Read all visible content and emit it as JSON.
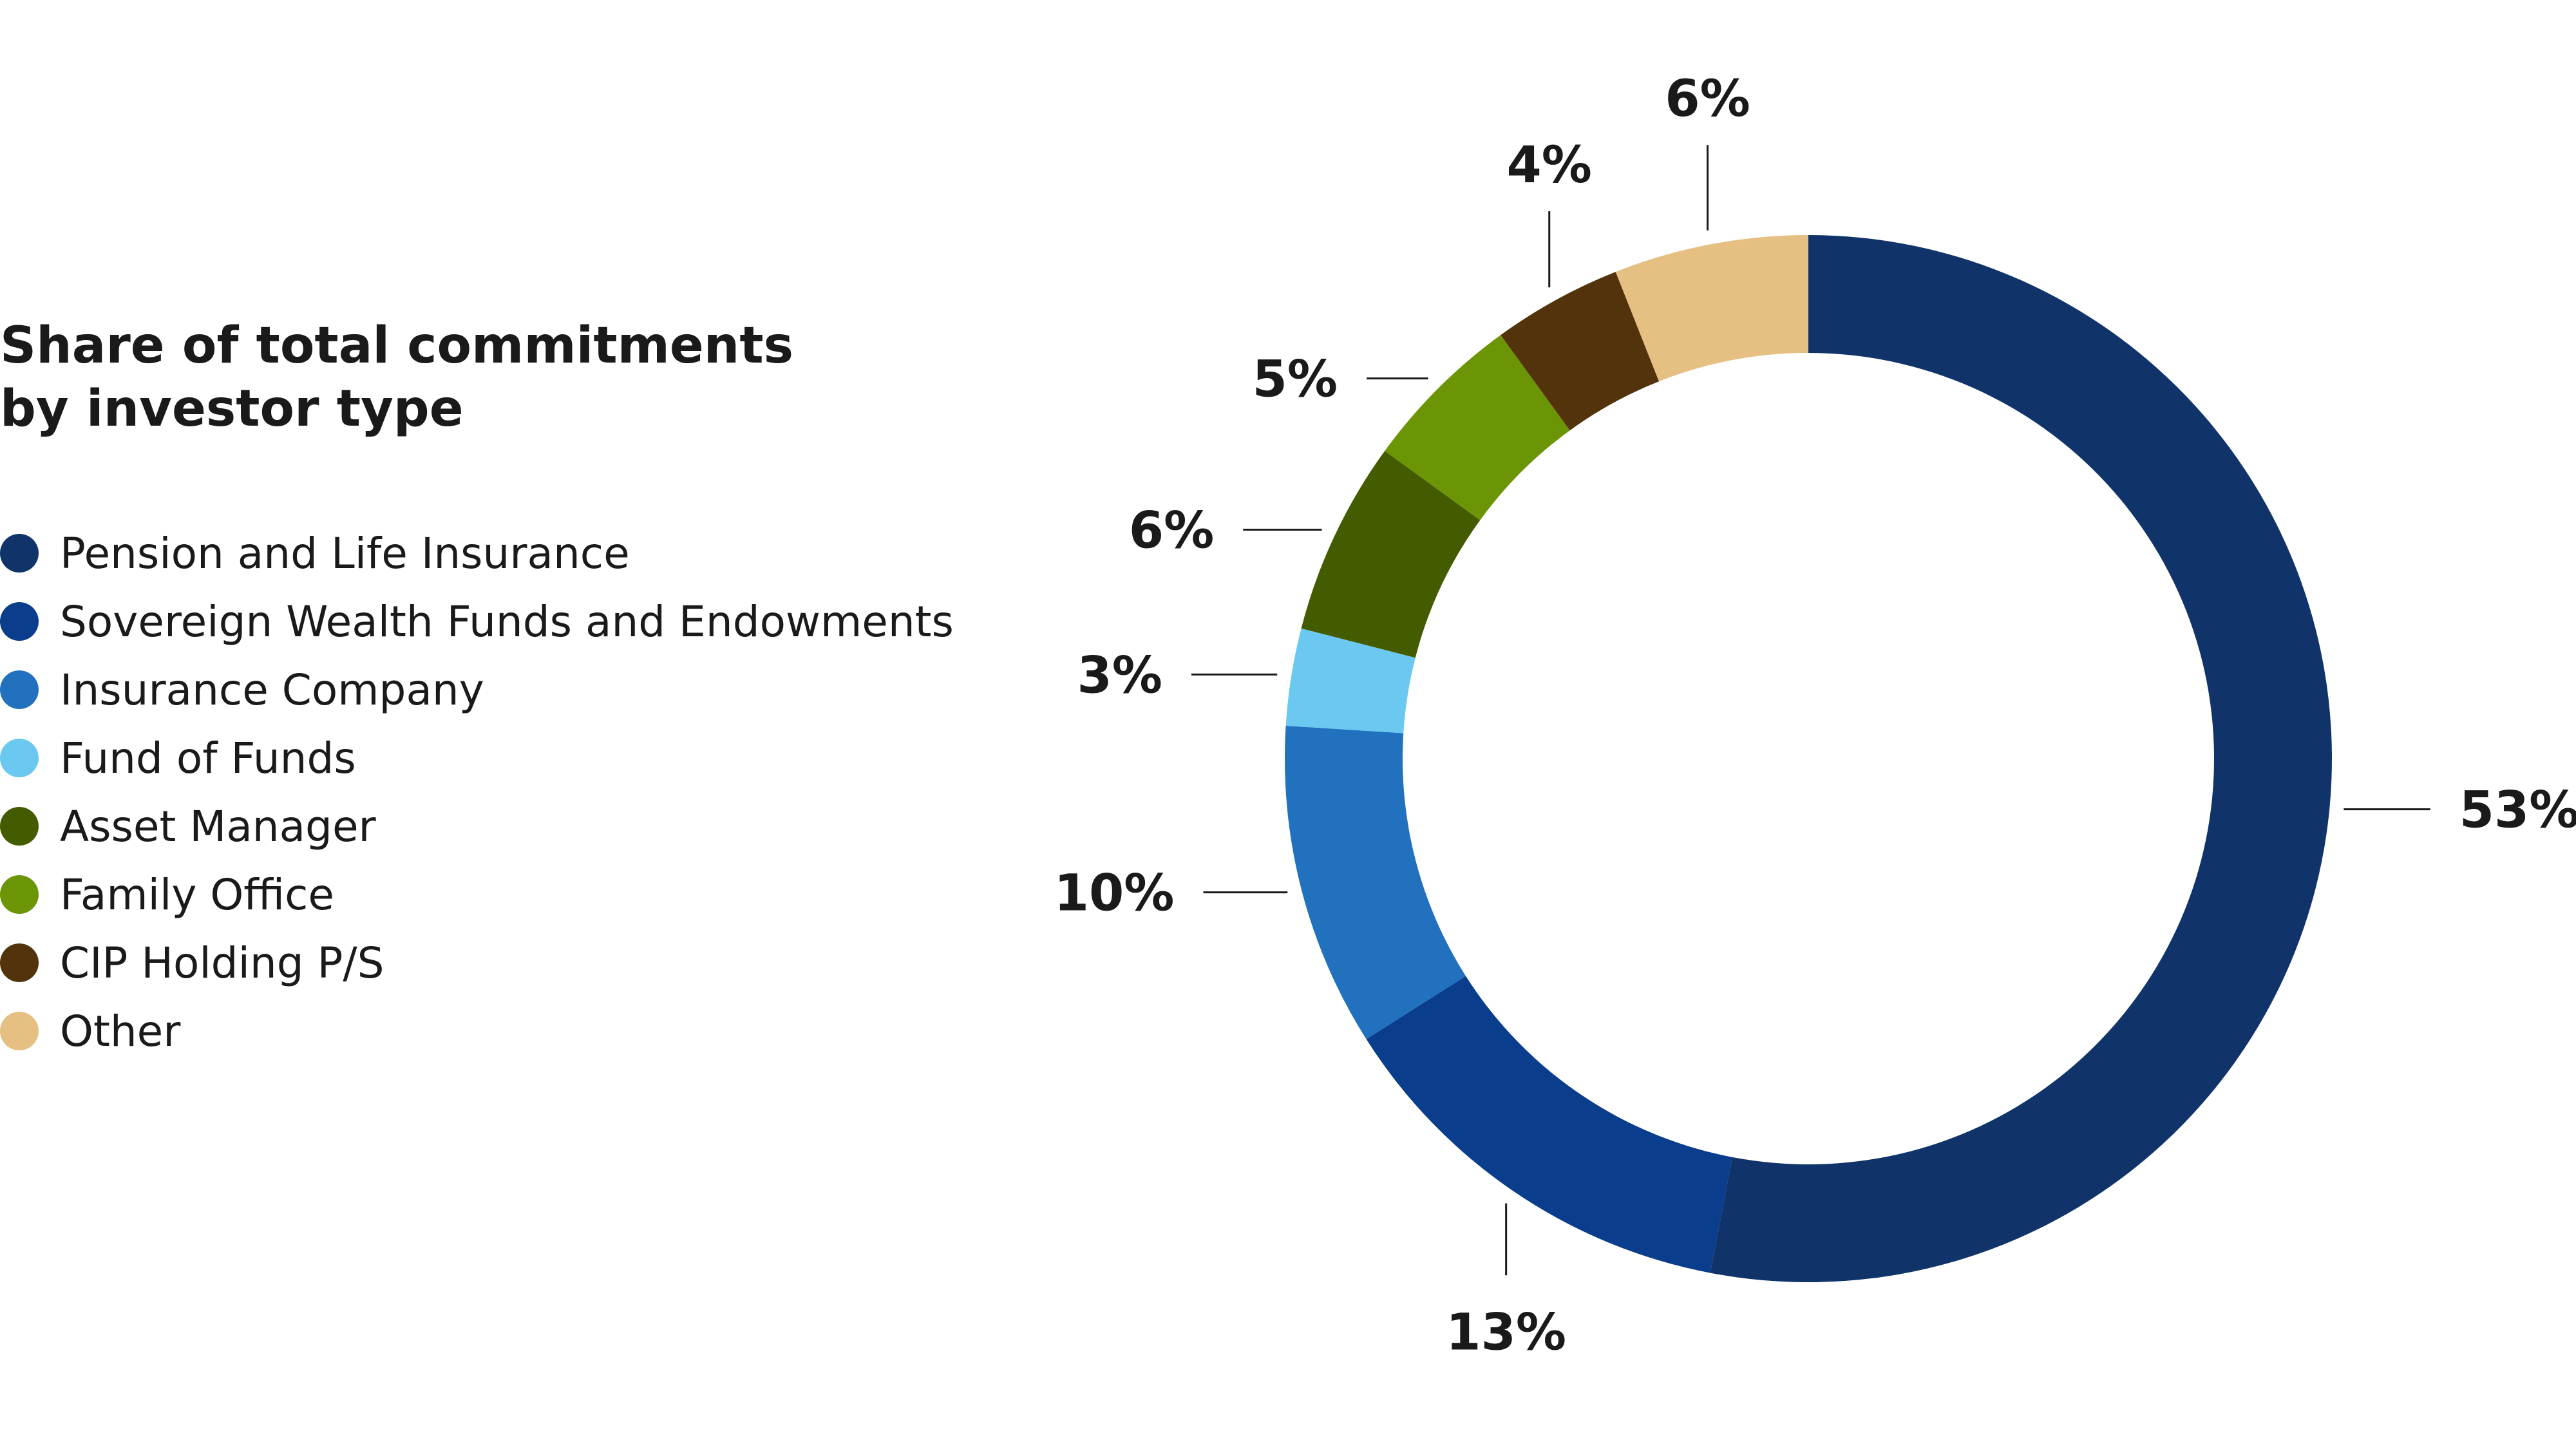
{
  "chart_data": {
    "type": "pie",
    "title": [
      "Share of total commitments",
      "by investor type"
    ],
    "legend_position": "left",
    "categories": [
      "Pension and Life Insurance",
      "Sovereign Wealth Funds and Endowments",
      "Insurance Company",
      "Fund of Funds",
      "Asset Manager",
      "Family Office",
      "CIP Holding P/S",
      "Other"
    ],
    "values": [
      53,
      13,
      10,
      3,
      6,
      5,
      4,
      6
    ],
    "value_labels": [
      "53%",
      "13%",
      "10%",
      "3%",
      "6%",
      "5%",
      "4%",
      "6%"
    ],
    "colors": [
      "#10346a",
      "#0a3d8c",
      "#2171be",
      "#6bc8f0",
      "#445c00",
      "#6b9505",
      "#52330b",
      "#e6c083"
    ]
  }
}
